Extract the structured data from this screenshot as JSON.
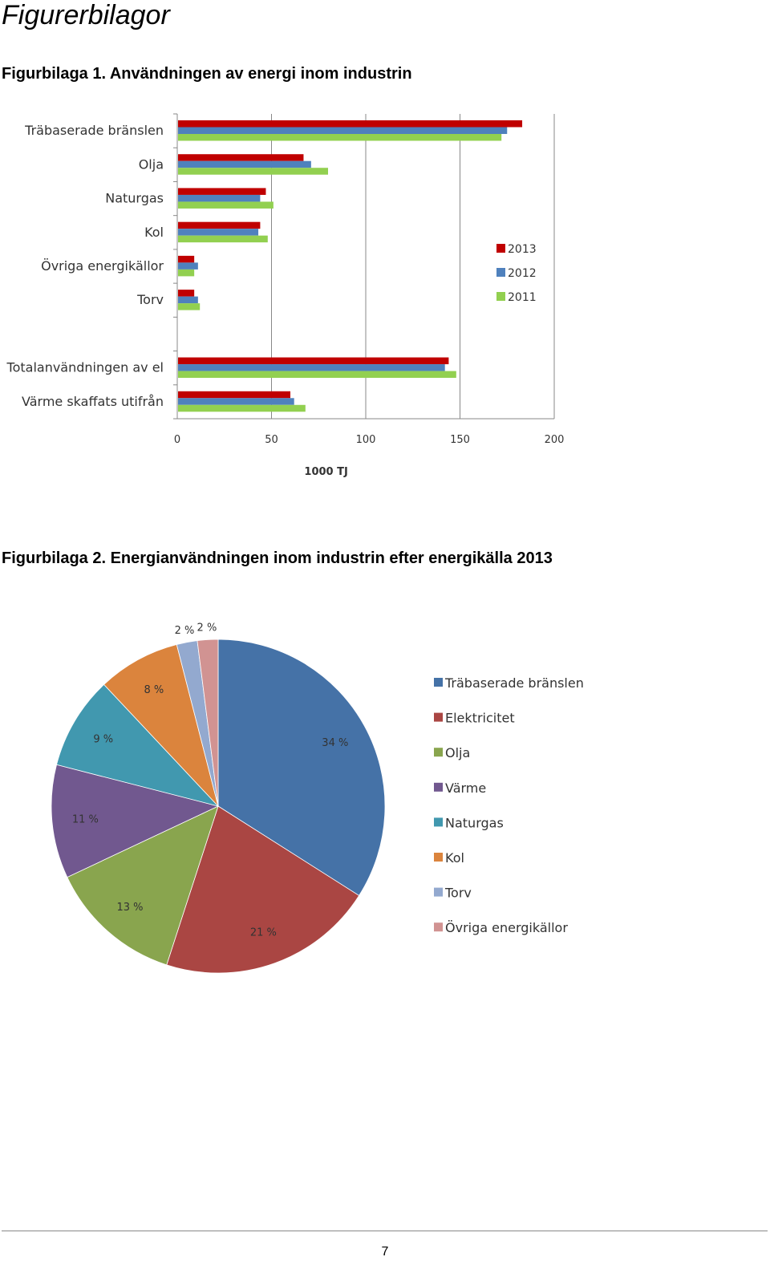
{
  "page": {
    "heading": "Figurerbilagor",
    "caption1": "Figurbilaga 1. Användningen av energi inom industrin",
    "caption2": "Figurbilaga 2. Energianvändningen inom industrin efter energikälla 2013",
    "page_number": "7"
  },
  "chart_data": [
    {
      "type": "bar",
      "orientation": "horizontal",
      "categories": [
        "Träbaserade bränslen",
        "Olja",
        "Naturgas",
        "Kol",
        "Övriga energikällor",
        "Torv",
        "",
        "Totalanvändningen av el",
        "Värme skaffats utifrån"
      ],
      "series": [
        {
          "name": "2013",
          "color": "#c00000",
          "values": [
            183,
            67,
            47,
            44,
            9,
            9,
            null,
            144,
            60
          ]
        },
        {
          "name": "2012",
          "color": "#4f81bd",
          "values": [
            175,
            71,
            44,
            43,
            11,
            11,
            null,
            142,
            62
          ]
        },
        {
          "name": "2011",
          "color": "#92d050",
          "values": [
            172,
            80,
            51,
            48,
            9,
            12,
            null,
            148,
            68
          ]
        }
      ],
      "xlabel": "1000 TJ",
      "ylabel": "",
      "xlim": [
        0,
        200
      ],
      "xticks": [
        "0",
        "50",
        "100",
        "150",
        "200"
      ],
      "grid": true,
      "legend": "right"
    },
    {
      "type": "pie",
      "labels": [
        "Träbaserade bränslen",
        "Elektricitet",
        "Olja",
        "Värme",
        "Naturgas",
        "Kol",
        "Torv",
        "Övriga energikällor"
      ],
      "values": [
        34,
        21,
        13,
        11,
        9,
        8,
        2,
        2
      ],
      "data_labels": [
        "34 %",
        "21 %",
        "13 %",
        "11 %",
        "9 %",
        "8 %",
        "2 %",
        "2 %"
      ],
      "colors": [
        "#4572a7",
        "#aa4643",
        "#89a54e",
        "#71588f",
        "#4198af",
        "#db843d",
        "#93a9cf",
        "#d19392"
      ],
      "legend": "right"
    }
  ]
}
